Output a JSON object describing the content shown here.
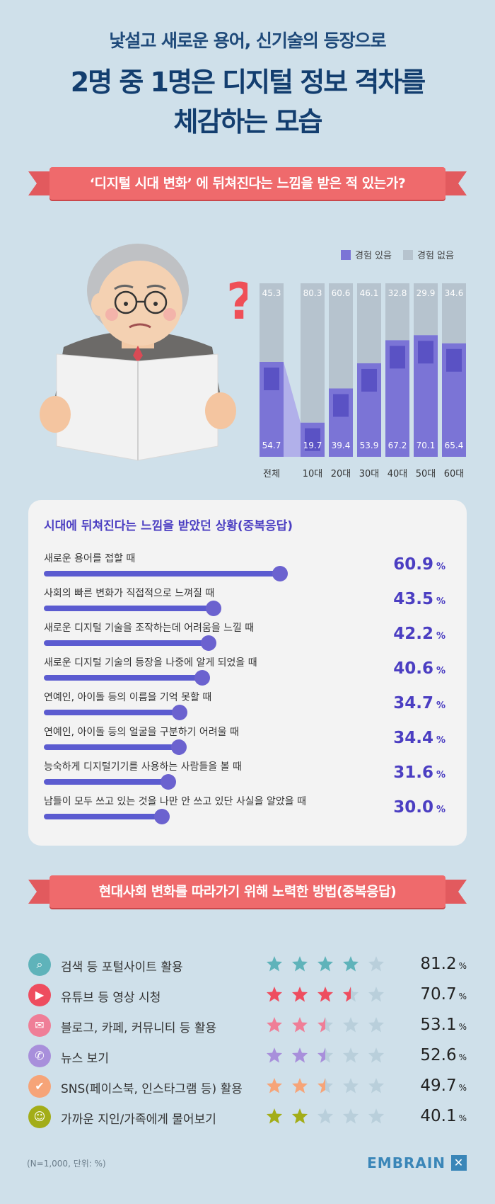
{
  "header": {
    "subtitle": "낯설고 새로운 용어, 신기술의 등장으로",
    "title_line1": "2명 중 1명은 디지털 정보 격차를",
    "title_line2": "체감하는 모습"
  },
  "section1": {
    "ribbon": "‘디지털 시대 변화’ 에 뒤쳐진다는 느낌을 받은 적 있는가?"
  },
  "section2": {
    "ribbon": "현대사회 변화를 따라가기 위해 노력한 방법(중복응답)"
  },
  "colors": {
    "exp": "#7b74d6",
    "noexp": "#b6c3ce",
    "ribbon": "#ef6a6c",
    "accent": "#4b3ec2"
  },
  "chart_data": [
    {
      "type": "bar",
      "stacked": true,
      "categories": [
        "전체",
        "10대",
        "20대",
        "30대",
        "40대",
        "50대",
        "60대"
      ],
      "series": [
        {
          "name": "경험 있음",
          "values": [
            54.7,
            19.7,
            39.4,
            53.9,
            67.2,
            70.1,
            65.4
          ]
        },
        {
          "name": "경험 없음",
          "values": [
            45.3,
            80.3,
            60.6,
            46.1,
            32.8,
            29.9,
            34.6
          ]
        }
      ],
      "ylim": [
        0,
        100
      ],
      "legend": "top-right"
    },
    {
      "type": "bar",
      "orientation": "horizontal",
      "title": "시대에 뒤쳐진다는 느낌을 받았던 상황(중복응답)",
      "unit": "%",
      "categories": [
        "새로운 용어를 접할 때",
        "사회의 빠른 변화가 직접적으로 느껴질 때",
        "새로운 디지털 기술을 조작하는데 어려움을 느낄 때",
        "새로운 디지털 기술의 등장을 나중에 알게 되었을 때",
        "연예인, 아이돌 등의 이름을 기억 못할 때",
        "연예인, 아이돌 등의 얼굴을 구분하기 어려울 때",
        "능숙하게 디지털기기를 사용하는 사람들을 볼 때",
        "남들이 모두 쓰고 있는 것을 나만 안 쓰고 있단 사실을 알았을 때"
      ],
      "values": [
        "60.9",
        "43.5",
        "42.2",
        "40.6",
        "34.7",
        "34.4",
        "31.6",
        "30.0"
      ]
    },
    {
      "type": "rating",
      "unit": "%",
      "max_stars": 5,
      "items": [
        {
          "label": "검색 등 포털사이트 활용",
          "value": "81.2",
          "stars": 4,
          "color": "#5fb3ba",
          "icon": "search-icon"
        },
        {
          "label": "유튜브 등 영상 시청",
          "value": "70.7",
          "stars": 3.5,
          "color": "#ee4d5f",
          "icon": "play-icon"
        },
        {
          "label": "블로그, 카페, 커뮤니티 등 활용",
          "value": "53.1",
          "stars": 2.5,
          "color": "#ef7e97",
          "icon": "chat-icon"
        },
        {
          "label": "뉴스 보기",
          "value": "52.6",
          "stars": 2.5,
          "color": "#a88fdb",
          "icon": "megaphone-icon"
        },
        {
          "label": "SNS(페이스북, 인스타그램 등) 활용",
          "value": "49.7",
          "stars": 2.5,
          "color": "#f6a478",
          "icon": "thumbs-up-icon"
        },
        {
          "label": "가까운 지인/가족에게 물어보기",
          "value": "40.1",
          "stars": 2,
          "color": "#a3ad18",
          "icon": "people-icon"
        }
      ]
    }
  ],
  "footer": {
    "note": "(N=1,000, 단위: %)",
    "brand": "EMBRAIN"
  }
}
